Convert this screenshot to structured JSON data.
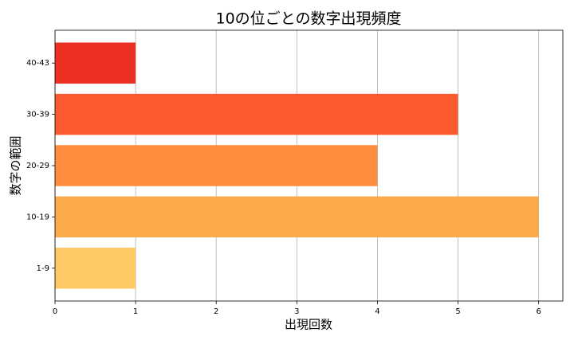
{
  "chart_data": {
    "type": "barh",
    "title": "10の位ごとの数字出現頻度",
    "xlabel": "出現回数",
    "ylabel": "数字の範囲",
    "categories": [
      "1-9",
      "10-19",
      "20-29",
      "30-39",
      "40-43"
    ],
    "values": [
      1,
      6,
      4,
      5,
      1
    ],
    "colors": [
      "#fec965",
      "#fdab4a",
      "#fd8d3c",
      "#fc5a2e",
      "#ec3023"
    ],
    "xlim": [
      0,
      6.3
    ],
    "xticks": [
      0,
      1,
      2,
      3,
      4,
      5,
      6
    ],
    "grid": true
  }
}
